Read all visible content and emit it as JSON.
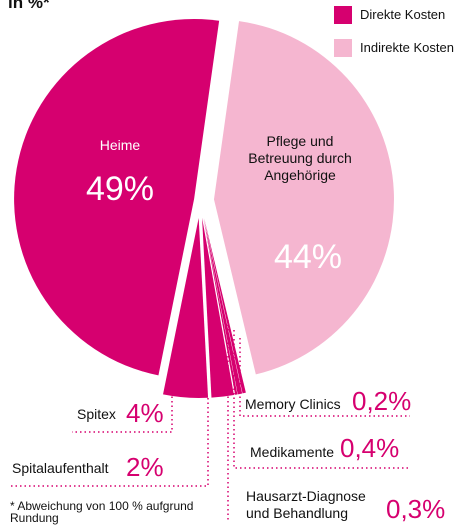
{
  "chart_data": {
    "type": "pie",
    "title": "in %*",
    "categories": [
      "Heime",
      "Spitex",
      "Spitalaufenthalt",
      "Memory Clinics",
      "Medikamente",
      "Hausarzt-Diagnose und Behandlung",
      "Pflege und Betreuung durch Angehörige"
    ],
    "values": [
      49,
      4,
      2,
      0.2,
      0.4,
      0.3,
      44
    ],
    "value_labels": [
      "49%",
      "4%",
      "2%",
      "0,2%",
      "0,4%",
      "0,3%",
      "44%"
    ],
    "groups": [
      "Direkte Kosten",
      "Direkte Kosten",
      "Direkte Kosten",
      "Direkte Kosten",
      "Direkte Kosten",
      "Direkte Kosten",
      "Indirekte Kosten"
    ],
    "legend": [
      {
        "name": "Direkte Kosten",
        "color": "#d6006f"
      },
      {
        "name": "Indirekte Kosten",
        "color": "#f5b6d0"
      }
    ],
    "legend_position": "upper right",
    "footnote": "* Abweichung von 100 % aufgrund Rundung"
  }
}
